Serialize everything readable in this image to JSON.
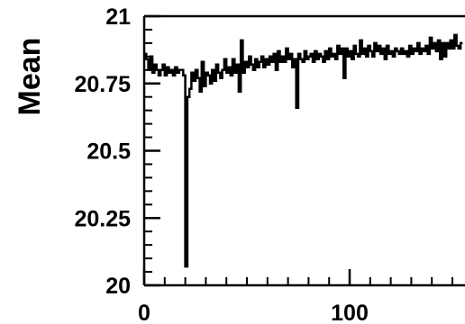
{
  "chart_data": {
    "type": "line",
    "style": "step histogram",
    "title": "",
    "xlabel": "",
    "ylabel": "Mean",
    "xlim": [
      0,
      150
    ],
    "ylim": [
      20,
      21
    ],
    "grid": false,
    "legend": "none",
    "line_color": "#000000",
    "x_tick_labels": [
      "0",
      "100"
    ],
    "y_tick_labels": [
      "20",
      "20.25",
      "20.5",
      "20.75",
      "21"
    ],
    "x_ticks": [
      0,
      100
    ],
    "y_ticks": [
      20,
      20.25,
      20.5,
      20.75,
      21
    ],
    "x": [
      0,
      1,
      2,
      3,
      4,
      5,
      6,
      7,
      8,
      9,
      10,
      11,
      12,
      13,
      14,
      15,
      16,
      17,
      18,
      19,
      20,
      21,
      22,
      23,
      24,
      25,
      26,
      27,
      28,
      29,
      30,
      31,
      32,
      33,
      34,
      35,
      36,
      37,
      38,
      39,
      40,
      41,
      42,
      43,
      44,
      45,
      46,
      47,
      48,
      49,
      50,
      51,
      52,
      53,
      54,
      55,
      56,
      57,
      58,
      59,
      60,
      61,
      62,
      63,
      64,
      65,
      66,
      67,
      68,
      69,
      70,
      71,
      72,
      73,
      74,
      75,
      76,
      77,
      78,
      79,
      80,
      81,
      82,
      83,
      84,
      85,
      86,
      87,
      88,
      89,
      90,
      91,
      92,
      93,
      94,
      95,
      96,
      97,
      98,
      99,
      100,
      101,
      102,
      103,
      104,
      105,
      106,
      107,
      108,
      109,
      110,
      111,
      112,
      113,
      114,
      115,
      116,
      117,
      118,
      119,
      120,
      121,
      122,
      123,
      124,
      125,
      126,
      127,
      128,
      129,
      130,
      131,
      132,
      133,
      134,
      135,
      136,
      137,
      138,
      139,
      140,
      141,
      142,
      143,
      144,
      145,
      146,
      147,
      148,
      149,
      150,
      151,
      152,
      153,
      154
    ],
    "series": [
      {
        "values": [
          20.86,
          20.84,
          20.8,
          20.85,
          20.79,
          20.82,
          20.8,
          20.78,
          20.8,
          20.82,
          20.78,
          20.81,
          20.79,
          20.8,
          20.78,
          20.81,
          20.79,
          20.8,
          20.8,
          20.78,
          20.07,
          20.7,
          20.73,
          20.79,
          20.76,
          20.8,
          20.77,
          20.72,
          20.83,
          20.74,
          20.79,
          20.78,
          20.75,
          20.8,
          20.76,
          20.82,
          20.79,
          20.77,
          20.8,
          20.84,
          20.79,
          20.81,
          20.78,
          20.84,
          20.79,
          20.82,
          20.72,
          20.91,
          20.79,
          20.83,
          20.81,
          20.85,
          20.82,
          20.8,
          20.84,
          20.81,
          20.83,
          20.85,
          20.81,
          20.84,
          20.82,
          20.85,
          20.83,
          20.86,
          20.8,
          20.87,
          20.83,
          20.85,
          20.83,
          20.88,
          20.84,
          20.86,
          20.81,
          20.84,
          20.66,
          20.86,
          20.84,
          20.83,
          20.87,
          20.84,
          20.85,
          20.86,
          20.83,
          20.87,
          20.84,
          20.86,
          20.85,
          20.83,
          20.87,
          20.84,
          20.88,
          20.85,
          20.86,
          20.84,
          20.89,
          20.86,
          20.88,
          20.77,
          20.88,
          20.85,
          20.87,
          20.84,
          20.89,
          20.86,
          20.85,
          20.91,
          20.86,
          20.88,
          20.85,
          20.89,
          20.87,
          20.85,
          20.9,
          20.87,
          20.89,
          20.86,
          20.88,
          20.84,
          20.89,
          20.86,
          20.87,
          20.85,
          20.88,
          20.87,
          20.86,
          20.88,
          20.86,
          20.87,
          20.85,
          20.89,
          20.86,
          20.88,
          20.87,
          20.9,
          20.86,
          20.88,
          20.87,
          20.89,
          20.86,
          20.92,
          20.88,
          20.9,
          20.87,
          20.91,
          20.84,
          20.9,
          20.85,
          20.9,
          20.88,
          20.91,
          20.88,
          20.93,
          20.89,
          20.88,
          20.9
        ]
      }
    ]
  }
}
